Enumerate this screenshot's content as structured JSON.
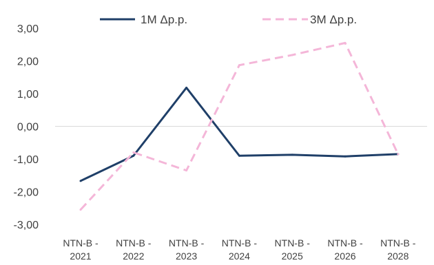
{
  "chart_data": {
    "type": "line",
    "categories": [
      [
        "NTN-B -",
        "2021"
      ],
      [
        "NTN-B -",
        "2022"
      ],
      [
        "NTN-B -",
        "2023"
      ],
      [
        "NTN-B -",
        "2024"
      ],
      [
        "NTN-B -",
        "2025"
      ],
      [
        "NTN-B -",
        "2026"
      ],
      [
        "NTN-B -",
        "2028"
      ]
    ],
    "series": [
      {
        "name": "1M Δp.p.",
        "color": "#1f3f68",
        "style": "solid",
        "values": [
          -1.67,
          -0.9,
          1.18,
          -0.9,
          -0.87,
          -0.92,
          -0.85
        ]
      },
      {
        "name": "3M Δp.p.",
        "color": "#f4b6d8",
        "style": "dashed",
        "values": [
          -2.55,
          -0.8,
          -1.35,
          1.87,
          2.18,
          2.55,
          -0.85
        ]
      }
    ],
    "y_ticks": [
      "3,00",
      "2,00",
      "1,00",
      "0,00",
      "-1,00",
      "-2,00",
      "-3,00"
    ],
    "ylim": [
      -3,
      3
    ],
    "legend_position": "top",
    "grid": false,
    "zero_line": true
  }
}
